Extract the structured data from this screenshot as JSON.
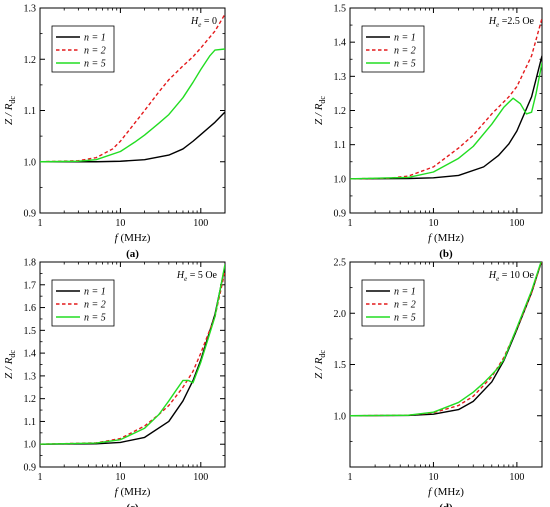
{
  "chart_data": [
    {
      "type": "line",
      "panel_label": "(a)",
      "field_label": {
        "symbol": "H",
        "sub": "e",
        "value": " = 0"
      },
      "xlabel": {
        "var": "f",
        "unit": " (MHz)"
      },
      "ylabel": {
        "text": "Z / R",
        "sub": "dc"
      },
      "xscale": "log",
      "xlim": [
        1,
        200
      ],
      "ylim": [
        0.9,
        1.3
      ],
      "xticks": [
        1,
        10,
        100
      ],
      "xticklabels": [
        "1",
        "10",
        "100"
      ],
      "yticks": [
        0.9,
        1.0,
        1.1,
        1.2,
        1.3
      ],
      "yticklabels": [
        "0.9",
        "1.0",
        "1.1",
        "1.2",
        "1.3"
      ],
      "legend_position": "top-left",
      "series": [
        {
          "name": "n = 1",
          "color": "#000000",
          "dash": "solid",
          "x": [
            1,
            5,
            10,
            20,
            40,
            60,
            80,
            100,
            150,
            200
          ],
          "y": [
            1.0,
            1.0,
            1.001,
            1.004,
            1.013,
            1.025,
            1.04,
            1.053,
            1.077,
            1.097
          ]
        },
        {
          "name": "n = 2",
          "color": "#e41a1c",
          "dash": "dashed",
          "x": [
            1,
            3,
            5,
            8,
            10,
            15,
            20,
            30,
            40,
            60,
            80,
            100,
            150,
            200
          ],
          "y": [
            1.0,
            1.002,
            1.008,
            1.025,
            1.04,
            1.075,
            1.1,
            1.136,
            1.16,
            1.187,
            1.205,
            1.222,
            1.255,
            1.288
          ]
        },
        {
          "name": "n = 5",
          "color": "#22dd22",
          "dash": "solid",
          "x": [
            1,
            3,
            5,
            10,
            15,
            20,
            30,
            40,
            60,
            80,
            100,
            130,
            150,
            200
          ],
          "y": [
            1.0,
            1.001,
            1.004,
            1.02,
            1.038,
            1.052,
            1.075,
            1.092,
            1.125,
            1.155,
            1.18,
            1.207,
            1.218,
            1.22
          ]
        }
      ]
    },
    {
      "type": "line",
      "panel_label": "(b)",
      "field_label": {
        "symbol": "H",
        "sub": "e",
        "value": " =2.5 Oe"
      },
      "xlabel": {
        "var": "f",
        "unit": " (MHz)"
      },
      "ylabel": {
        "text": "Z / R",
        "sub": "dc"
      },
      "xscale": "log",
      "xlim": [
        1,
        200
      ],
      "ylim": [
        0.9,
        1.5
      ],
      "xticks": [
        1,
        10,
        100
      ],
      "xticklabels": [
        "1",
        "10",
        "100"
      ],
      "yticks": [
        0.9,
        1.0,
        1.1,
        1.2,
        1.3,
        1.4,
        1.5
      ],
      "yticklabels": [
        "0.9",
        "1.0",
        "1.1",
        "1.2",
        "1.3",
        "1.4",
        "1.5"
      ],
      "legend_position": "top-left",
      "series": [
        {
          "name": "n = 1",
          "color": "#000000",
          "dash": "solid",
          "x": [
            1,
            5,
            10,
            20,
            40,
            60,
            80,
            100,
            150,
            200
          ],
          "y": [
            1.0,
            1.001,
            1.003,
            1.01,
            1.035,
            1.068,
            1.102,
            1.14,
            1.24,
            1.36
          ]
        },
        {
          "name": "n = 2",
          "color": "#e41a1c",
          "dash": "dashed",
          "x": [
            1,
            3,
            5,
            10,
            20,
            30,
            50,
            80,
            100,
            150,
            200
          ],
          "y": [
            1.0,
            1.002,
            1.008,
            1.035,
            1.09,
            1.128,
            1.19,
            1.24,
            1.27,
            1.36,
            1.47
          ]
        },
        {
          "name": "n = 5",
          "color": "#22dd22",
          "dash": "solid",
          "x": [
            1,
            5,
            10,
            20,
            30,
            50,
            70,
            90,
            110,
            130,
            150,
            170,
            200
          ],
          "y": [
            1.0,
            1.004,
            1.02,
            1.06,
            1.095,
            1.16,
            1.21,
            1.236,
            1.22,
            1.19,
            1.195,
            1.25,
            1.34
          ]
        }
      ]
    },
    {
      "type": "line",
      "panel_label": "(c)",
      "field_label": {
        "symbol": "H",
        "sub": "e",
        "value": " = 5 Oe"
      },
      "xlabel": {
        "var": "f",
        "unit": " (MHz)"
      },
      "ylabel": {
        "text": "Z / R",
        "sub": "dc"
      },
      "xscale": "log",
      "xlim": [
        1,
        200
      ],
      "ylim": [
        0.9,
        1.8
      ],
      "xticks": [
        1,
        10,
        100
      ],
      "xticklabels": [
        "1",
        "10",
        "100"
      ],
      "yticks": [
        0.9,
        1.0,
        1.1,
        1.2,
        1.3,
        1.4,
        1.5,
        1.6,
        1.7,
        1.8
      ],
      "yticklabels": [
        "0.9",
        "1.0",
        "1.1",
        "1.2",
        "1.3",
        "1.4",
        "1.5",
        "1.6",
        "1.7",
        "1.8"
      ],
      "legend_position": "top-left",
      "series": [
        {
          "name": "n = 1",
          "color": "#000000",
          "dash": "solid",
          "x": [
            1,
            5,
            10,
            20,
            40,
            60,
            80,
            100,
            150,
            200
          ],
          "y": [
            1.0,
            1.002,
            1.008,
            1.03,
            1.1,
            1.19,
            1.28,
            1.37,
            1.57,
            1.78
          ]
        },
        {
          "name": "n = 2",
          "color": "#e41a1c",
          "dash": "dashed",
          "x": [
            1,
            5,
            10,
            20,
            30,
            40,
            60,
            80,
            100,
            150,
            200
          ],
          "y": [
            1.0,
            1.006,
            1.025,
            1.08,
            1.13,
            1.17,
            1.25,
            1.32,
            1.4,
            1.56,
            1.76
          ]
        },
        {
          "name": "n = 5",
          "color": "#22dd22",
          "dash": "solid",
          "x": [
            1,
            5,
            10,
            20,
            30,
            40,
            50,
            60,
            70,
            80,
            100,
            150,
            200
          ],
          "y": [
            1.0,
            1.005,
            1.02,
            1.07,
            1.13,
            1.19,
            1.24,
            1.28,
            1.28,
            1.27,
            1.36,
            1.56,
            1.79
          ]
        }
      ]
    },
    {
      "type": "line",
      "panel_label": "(d)",
      "field_label": {
        "symbol": "H",
        "sub": "e",
        "value": " = 10 Oe"
      },
      "xlabel": {
        "var": "f",
        "unit": " (MHz)"
      },
      "ylabel": {
        "text": "Z / R",
        "sub": "dc"
      },
      "xscale": "log",
      "xlim": [
        1,
        200
      ],
      "ylim": [
        0.5,
        2.5
      ],
      "xticks": [
        1,
        10,
        100
      ],
      "xticklabels": [
        "1",
        "10",
        "100"
      ],
      "yticks": [
        1.0,
        1.5,
        2.0,
        2.5
      ],
      "yticklabels": [
        "1.0",
        "1.5",
        "2.0",
        "2.5"
      ],
      "legend_position": "top-left",
      "series": [
        {
          "name": "n = 1",
          "color": "#000000",
          "dash": "solid",
          "x": [
            1,
            5,
            10,
            20,
            30,
            50,
            70,
            100,
            150,
            200
          ],
          "y": [
            1.0,
            1.003,
            1.015,
            1.06,
            1.14,
            1.33,
            1.54,
            1.84,
            2.2,
            2.52
          ]
        },
        {
          "name": "n = 2",
          "color": "#e41a1c",
          "dash": "dashed",
          "x": [
            1,
            5,
            10,
            20,
            30,
            50,
            70,
            100,
            150,
            200
          ],
          "y": [
            1.0,
            1.005,
            1.03,
            1.1,
            1.19,
            1.38,
            1.57,
            1.85,
            2.2,
            2.52
          ]
        },
        {
          "name": "n = 5",
          "color": "#22dd22",
          "dash": "solid",
          "x": [
            1,
            5,
            10,
            20,
            30,
            40,
            50,
            60,
            70,
            100,
            150,
            200
          ],
          "y": [
            1.0,
            1.005,
            1.035,
            1.13,
            1.23,
            1.32,
            1.4,
            1.47,
            1.55,
            1.86,
            2.22,
            2.53
          ]
        }
      ]
    }
  ]
}
